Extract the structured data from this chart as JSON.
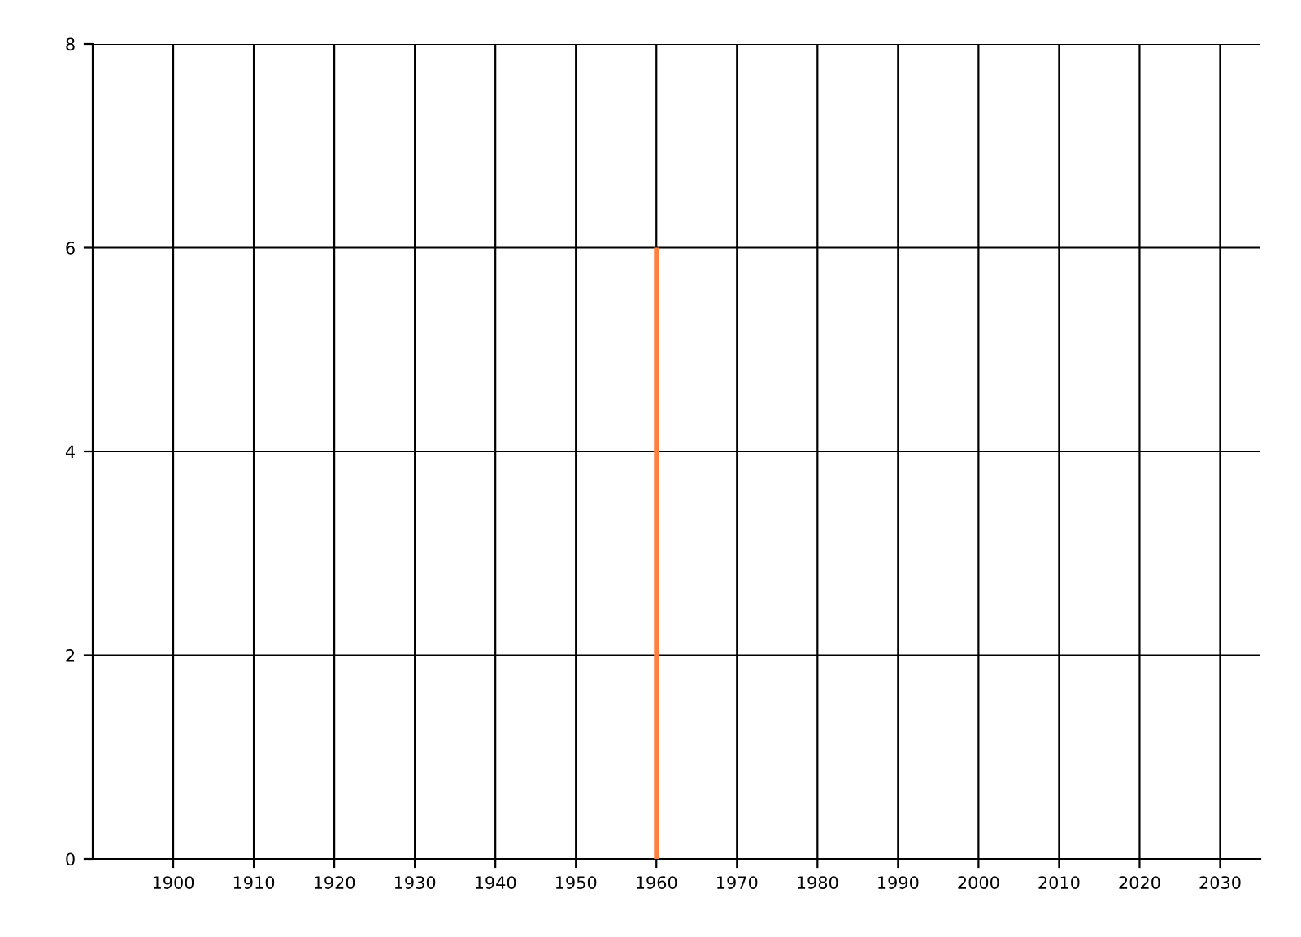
{
  "chart_data": {
    "type": "bar",
    "x": [
      1960
    ],
    "values": [
      6
    ],
    "color": "#ff7f3f",
    "xlim": [
      1890,
      2035
    ],
    "xticks": [
      1900,
      1910,
      1920,
      1930,
      1940,
      1950,
      1960,
      1970,
      1980,
      1990,
      2000,
      2010,
      2020,
      2030
    ],
    "ylim": [
      0,
      8
    ],
    "yticks": [
      0,
      2,
      4,
      6,
      8
    ],
    "grid": true,
    "legend": false
  }
}
